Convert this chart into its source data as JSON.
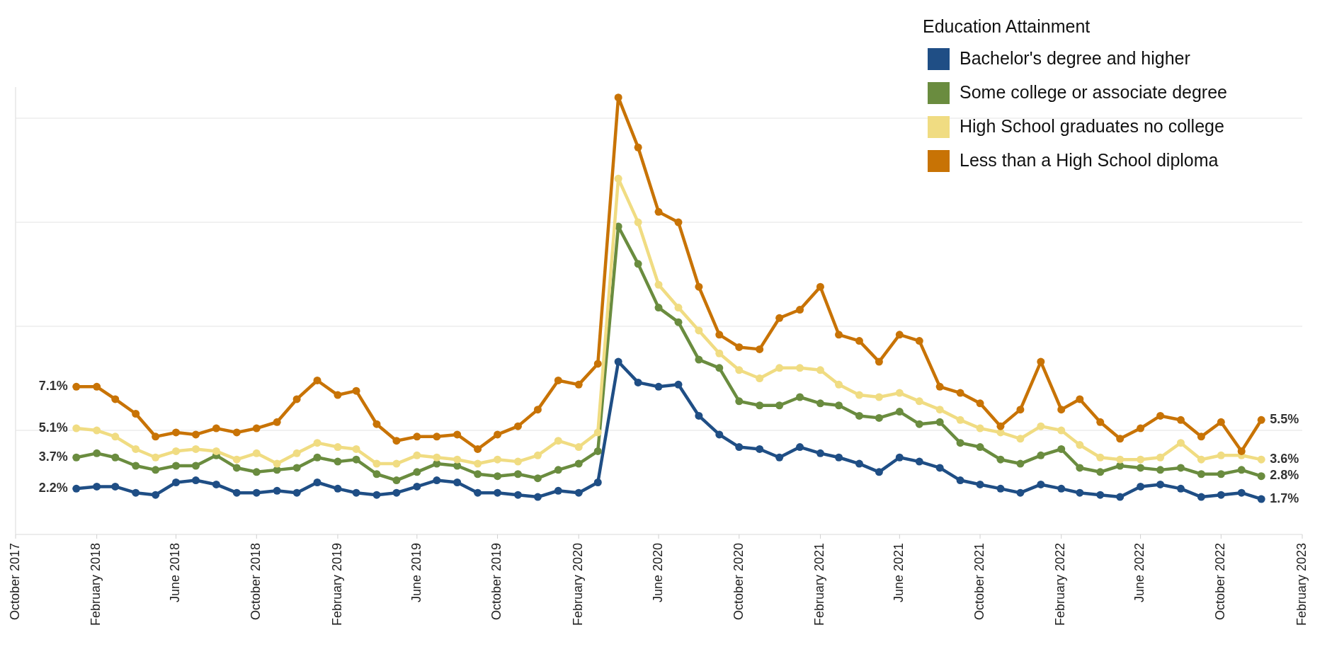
{
  "chart_data": {
    "type": "line",
    "legend_title": "Education Attainment",
    "legend": "top right",
    "grid": "y",
    "marker": "circle",
    "line_style": "solid",
    "tick_labels": "x",
    "x": [
      "2018-01",
      "2018-02",
      "2018-03",
      "2018-04",
      "2018-05",
      "2018-06",
      "2018-07",
      "2018-08",
      "2018-09",
      "2018-10",
      "2018-11",
      "2018-12",
      "2019-01",
      "2019-02",
      "2019-03",
      "2019-04",
      "2019-05",
      "2019-06",
      "2019-07",
      "2019-08",
      "2019-09",
      "2019-10",
      "2019-11",
      "2019-12",
      "2020-01",
      "2020-02",
      "2020-03",
      "2020-04",
      "2020-05",
      "2020-06",
      "2020-07",
      "2020-08",
      "2020-09",
      "2020-10",
      "2020-11",
      "2020-12",
      "2021-01",
      "2021-02",
      "2021-03",
      "2021-04",
      "2021-05",
      "2021-06",
      "2021-07",
      "2021-08",
      "2021-09",
      "2021-10",
      "2021-11",
      "2021-12",
      "2022-01",
      "2022-02",
      "2022-03",
      "2022-04",
      "2022-05",
      "2022-06",
      "2022-07",
      "2022-08",
      "2022-09",
      "2022-10",
      "2022-11",
      "2022-12"
    ],
    "xlim": [
      "2017-10",
      "2023-02"
    ],
    "xticks": [
      {
        "value": "2017-10",
        "label": "October 2017"
      },
      {
        "value": "2018-02",
        "label": "February 2018"
      },
      {
        "value": "2018-06",
        "label": "June 2018"
      },
      {
        "value": "2018-10",
        "label": "October 2018"
      },
      {
        "value": "2019-02",
        "label": "February 2019"
      },
      {
        "value": "2019-06",
        "label": "June 2019"
      },
      {
        "value": "2019-10",
        "label": "October 2019"
      },
      {
        "value": "2020-02",
        "label": "February 2020"
      },
      {
        "value": "2020-06",
        "label": "June 2020"
      },
      {
        "value": "2020-10",
        "label": "October 2020"
      },
      {
        "value": "2021-02",
        "label": "February 2021"
      },
      {
        "value": "2021-06",
        "label": "June 2021"
      },
      {
        "value": "2021-10",
        "label": "October 2021"
      },
      {
        "value": "2022-02",
        "label": "February 2022"
      },
      {
        "value": "2022-06",
        "label": "June 2022"
      },
      {
        "value": "2022-10",
        "label": "October 2022"
      },
      {
        "value": "2023-02",
        "label": "February 2023"
      }
    ],
    "ylim": [
      0,
      21.5
    ],
    "yticks": [
      {
        "value": 0,
        "label": null
      },
      {
        "value": 5,
        "label": null
      },
      {
        "value": 10,
        "label": null
      },
      {
        "value": 15,
        "label": null
      },
      {
        "value": 20,
        "label": null
      }
    ],
    "series": [
      {
        "name": "Bachelor's degree and higher",
        "color": "#1f4e85",
        "values": [
          2.2,
          2.3,
          2.3,
          2.0,
          1.9,
          2.5,
          2.6,
          2.4,
          2.0,
          2.0,
          2.1,
          2.0,
          2.5,
          2.2,
          2.0,
          1.9,
          2.0,
          2.3,
          2.6,
          2.5,
          2.0,
          2.0,
          1.9,
          1.8,
          2.1,
          2.0,
          2.5,
          8.3,
          7.3,
          7.1,
          7.2,
          5.7,
          4.8,
          4.2,
          4.1,
          3.7,
          4.2,
          3.9,
          3.7,
          3.4,
          3.0,
          3.7,
          3.5,
          3.2,
          2.6,
          2.4,
          2.2,
          2.0,
          2.4,
          2.2,
          2.0,
          1.9,
          1.8,
          2.3,
          2.4,
          2.2,
          1.8,
          1.9,
          2.0,
          1.7
        ],
        "value_labels": [
          "2.2%",
          null,
          null,
          null,
          null,
          null,
          null,
          null,
          null,
          null,
          null,
          null,
          null,
          null,
          null,
          null,
          null,
          null,
          null,
          null,
          null,
          null,
          null,
          null,
          null,
          null,
          null,
          null,
          null,
          null,
          null,
          null,
          null,
          null,
          null,
          null,
          null,
          null,
          null,
          null,
          null,
          null,
          null,
          null,
          null,
          null,
          null,
          null,
          null,
          null,
          null,
          null,
          null,
          null,
          null,
          null,
          null,
          null,
          null,
          "1.7%"
        ]
      },
      {
        "name": "Some college or associate degree",
        "color": "#6a8c3f",
        "values": [
          3.7,
          3.9,
          3.7,
          3.3,
          3.1,
          3.3,
          3.3,
          3.8,
          3.2,
          3.0,
          3.1,
          3.2,
          3.7,
          3.5,
          3.6,
          2.9,
          2.6,
          3.0,
          3.4,
          3.3,
          2.9,
          2.8,
          2.9,
          2.7,
          3.1,
          3.4,
          4.0,
          14.8,
          13.0,
          10.9,
          10.2,
          8.4,
          8.0,
          6.4,
          6.2,
          6.2,
          6.6,
          6.3,
          6.2,
          5.7,
          5.6,
          5.9,
          5.3,
          5.4,
          4.4,
          4.2,
          3.6,
          3.4,
          3.8,
          4.1,
          3.2,
          3.0,
          3.3,
          3.2,
          3.1,
          3.2,
          2.9,
          2.9,
          3.1,
          2.8
        ],
        "value_labels": [
          "3.7%",
          null,
          null,
          null,
          null,
          null,
          null,
          null,
          null,
          null,
          null,
          null,
          null,
          null,
          null,
          null,
          null,
          null,
          null,
          null,
          null,
          null,
          null,
          null,
          null,
          null,
          null,
          null,
          null,
          null,
          null,
          null,
          null,
          null,
          null,
          null,
          null,
          null,
          null,
          null,
          null,
          null,
          null,
          null,
          null,
          null,
          null,
          null,
          null,
          null,
          null,
          null,
          null,
          null,
          null,
          null,
          null,
          null,
          null,
          "2.8%"
        ]
      },
      {
        "name": "High School graduates no college",
        "color": "#f0dc82",
        "values": [
          5.1,
          5.0,
          4.7,
          4.1,
          3.7,
          4.0,
          4.1,
          4.0,
          3.6,
          3.9,
          3.4,
          3.9,
          4.4,
          4.2,
          4.1,
          3.4,
          3.4,
          3.8,
          3.7,
          3.6,
          3.4,
          3.6,
          3.5,
          3.8,
          4.5,
          4.2,
          4.9,
          17.1,
          15.0,
          12.0,
          10.9,
          9.8,
          8.7,
          7.9,
          7.5,
          8.0,
          8.0,
          7.9,
          7.2,
          6.7,
          6.6,
          6.8,
          6.4,
          6.0,
          5.5,
          5.1,
          4.9,
          4.6,
          5.2,
          5.0,
          4.3,
          3.7,
          3.6,
          3.6,
          3.7,
          4.4,
          3.6,
          3.8,
          3.8,
          3.6
        ],
        "value_labels": [
          "5.1%",
          null,
          null,
          null,
          null,
          null,
          null,
          null,
          null,
          null,
          null,
          null,
          null,
          null,
          null,
          null,
          null,
          null,
          null,
          null,
          null,
          null,
          null,
          null,
          null,
          null,
          null,
          null,
          null,
          null,
          null,
          null,
          null,
          null,
          null,
          null,
          null,
          null,
          null,
          null,
          null,
          null,
          null,
          null,
          null,
          null,
          null,
          null,
          null,
          null,
          null,
          null,
          null,
          null,
          null,
          null,
          null,
          null,
          null,
          "3.6%"
        ]
      },
      {
        "name": "Less than a High School diploma",
        "color": "#c87305",
        "values": [
          7.1,
          7.1,
          6.5,
          5.8,
          4.7,
          4.9,
          4.8,
          5.1,
          4.9,
          5.1,
          5.4,
          6.5,
          7.4,
          6.7,
          6.9,
          5.3,
          4.5,
          4.7,
          4.7,
          4.8,
          4.1,
          4.8,
          5.2,
          6.0,
          7.4,
          7.2,
          8.2,
          21.0,
          18.6,
          15.5,
          15.0,
          11.9,
          9.6,
          9.0,
          8.9,
          10.4,
          10.8,
          11.9,
          9.6,
          9.3,
          8.3,
          9.6,
          9.3,
          7.1,
          6.8,
          6.3,
          5.2,
          6.0,
          8.3,
          6.0,
          6.5,
          5.4,
          4.6,
          5.1,
          5.7,
          5.5,
          4.7,
          5.4,
          4.0,
          5.5
        ],
        "value_labels": [
          "7.1%",
          null,
          null,
          null,
          null,
          null,
          null,
          null,
          null,
          null,
          null,
          null,
          null,
          null,
          null,
          null,
          null,
          null,
          null,
          null,
          null,
          null,
          null,
          null,
          null,
          null,
          null,
          null,
          null,
          null,
          null,
          null,
          null,
          null,
          null,
          null,
          null,
          null,
          null,
          null,
          null,
          null,
          null,
          null,
          null,
          null,
          null,
          null,
          null,
          null,
          null,
          null,
          null,
          null,
          null,
          null,
          null,
          null,
          null,
          "5.5%"
        ]
      }
    ]
  }
}
